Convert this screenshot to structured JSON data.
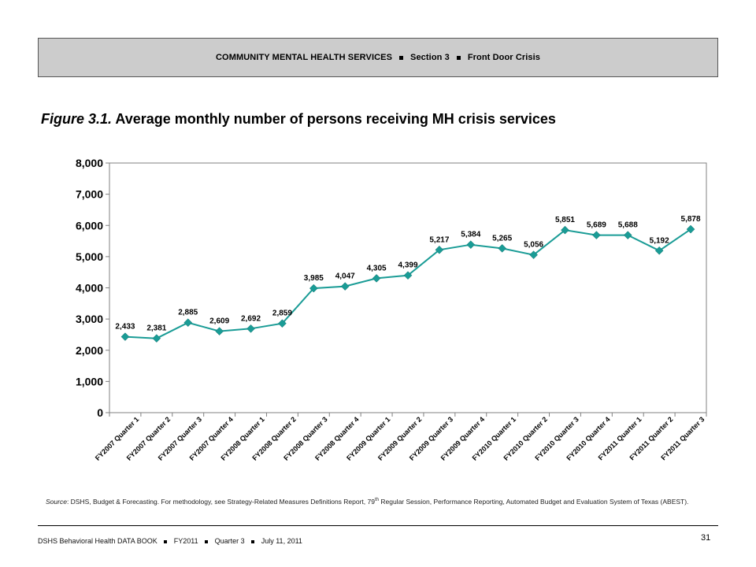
{
  "header": {
    "part1": "COMMUNITY MENTAL HEALTH SERVICES",
    "part2": "Section 3",
    "part3": "Front Door Crisis"
  },
  "figure": {
    "number": "Figure 3.1.",
    "title": "Average monthly number of persons receiving MH crisis services"
  },
  "chart_data": {
    "type": "line",
    "categories": [
      "FY2007 Quarter 1",
      "FY2007 Quarter 2",
      "FY2007 Quarter 3",
      "FY2007 Quarter 4",
      "FY2008 Quarter 1",
      "FY2008 Quarter 2",
      "FY2008 Quarter 3",
      "FY2008 Quarter 4",
      "FY2009 Quarter 1",
      "FY2009 Quarter 2",
      "FY2009 Quarter 3",
      "FY2009 Quarter 4",
      "FY2010 Quarter 1",
      "FY2010 Quarter 2",
      "FY2010 Quarter 3",
      "FY2010 Quarter 4",
      "FY2011 Quarter 1",
      "FY2011 Quarter 2",
      "FY2011 Quarter 3"
    ],
    "values": [
      2433,
      2381,
      2885,
      2609,
      2692,
      2859,
      3985,
      4047,
      4305,
      4399,
      5217,
      5384,
      5265,
      5056,
      5851,
      5689,
      5688,
      5192,
      5878
    ],
    "data_labels": [
      "2,433",
      "2,381",
      "2,885",
      "2,609",
      "2,692",
      "2,859",
      "3,985",
      "4,047",
      "4,305",
      "4,399",
      "5,217",
      "5,384",
      "5,265",
      "5,056",
      "5,851",
      "5,689",
      "5,688",
      "5,192",
      "5,878"
    ],
    "y_ticks": [
      0,
      1000,
      2000,
      3000,
      4000,
      5000,
      6000,
      7000,
      8000
    ],
    "y_tick_labels": [
      "0",
      "1,000",
      "2,000",
      "3,000",
      "4,000",
      "5,000",
      "6,000",
      "7,000",
      "8,000"
    ],
    "ylim": [
      0,
      8000
    ],
    "grid": false,
    "legend": "none",
    "series_color": "#1a9c96",
    "marker": "diamond"
  },
  "source": {
    "label": "Source",
    "text_a": ": DSHS, Budget & Forecasting. For methodology, see Strategy-Related Measures Definitions Report, 79",
    "sup": "th",
    "text_b": " Regular Session, Performance Reporting, Automated Budget and Evaluation System of Texas (ABEST)."
  },
  "footer": {
    "book": "DSHS Behavioral Health DATA BOOK",
    "fiscal_year": "FY2011",
    "quarter": "Quarter 3",
    "date": "July 11, 2011",
    "page_number": "31"
  }
}
